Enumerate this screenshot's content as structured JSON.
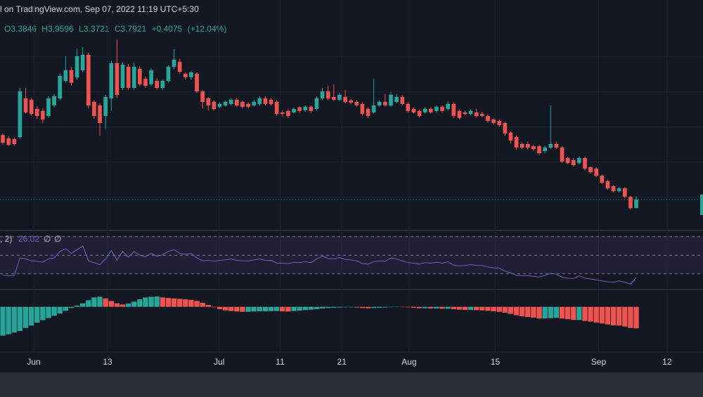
{
  "chart_data": {
    "type": "candlestick",
    "source": "l on TradingView.com, Sep 07, 2022 11:19 UTC+5:30",
    "ohlc_labels": [
      "O",
      "H",
      "L",
      "C"
    ],
    "change": "+0.4075",
    "change_pct": "(+12.04%)",
    "up_color": "#26a69a",
    "down_color": "#ef5350",
    "ylim": [
      2.4,
      12.6
    ],
    "price_grid": [
      3.9,
      5.6,
      7.3,
      9.0,
      10.7
    ],
    "xlim": [
      -0.5,
      122.7
    ],
    "xticks": [
      {
        "value": 5.4,
        "label": "Jun"
      },
      {
        "value": 18.35,
        "label": "13"
      },
      {
        "value": 37.9,
        "label": "Jul"
      },
      {
        "value": 48.6,
        "label": "11"
      },
      {
        "value": 59.4,
        "label": "21"
      },
      {
        "value": 71.2,
        "label": "Aug"
      },
      {
        "value": 86.3,
        "label": "15"
      },
      {
        "value": 104.4,
        "label": "Sep"
      },
      {
        "value": 116.4,
        "label": "12"
      }
    ],
    "candles": [
      [
        6.92,
        7.0,
        6.45,
        6.55
      ],
      [
        6.75,
        6.85,
        6.38,
        6.45
      ],
      [
        6.72,
        6.8,
        6.4,
        6.48
      ],
      [
        6.82,
        9.2,
        6.75,
        9.03
      ],
      [
        8.69,
        9.2,
        7.95,
        8.01
      ],
      [
        8.62,
        8.7,
        7.85,
        7.94
      ],
      [
        8.18,
        8.3,
        7.7,
        7.84
      ],
      [
        8.08,
        8.2,
        7.5,
        7.67
      ],
      [
        7.84,
        8.8,
        7.75,
        8.69
      ],
      [
        8.35,
        8.9,
        8.25,
        8.79
      ],
      [
        8.69,
        9.9,
        8.6,
        9.78
      ],
      [
        9.54,
        10.73,
        9.45,
        10.05
      ],
      [
        10.05,
        10.2,
        9.3,
        9.44
      ],
      [
        9.71,
        11.1,
        9.6,
        10.73
      ],
      [
        10.05,
        11.17,
        9.95,
        10.8
      ],
      [
        10.8,
        10.9,
        8.2,
        8.35
      ],
      [
        8.52,
        8.6,
        7.7,
        7.84
      ],
      [
        8.35,
        8.45,
        6.89,
        7.5
      ],
      [
        7.84,
        8.85,
        7.2,
        8.76
      ],
      [
        8.69,
        10.5,
        8.1,
        10.39
      ],
      [
        10.39,
        11.51,
        8.7,
        8.86
      ],
      [
        9.2,
        10.45,
        9.1,
        10.32
      ],
      [
        10.22,
        10.35,
        9.1,
        9.2
      ],
      [
        9.2,
        10.4,
        9.1,
        10.22
      ],
      [
        10.12,
        10.25,
        9.3,
        9.37
      ],
      [
        9.64,
        9.75,
        9.2,
        9.3
      ],
      [
        9.37,
        10.15,
        9.3,
        10.05
      ],
      [
        9.54,
        9.65,
        9.1,
        9.2
      ],
      [
        9.2,
        9.6,
        9.1,
        9.54
      ],
      [
        9.54,
        10.3,
        9.45,
        10.22
      ],
      [
        10.22,
        11.07,
        10.1,
        10.56
      ],
      [
        10.46,
        10.6,
        9.9,
        9.98
      ],
      [
        9.88,
        9.95,
        9.6,
        9.71
      ],
      [
        9.71,
        10.0,
        9.6,
        9.95
      ],
      [
        9.88,
        9.95,
        8.95,
        9.03
      ],
      [
        9.03,
        9.1,
        8.2,
        8.52
      ],
      [
        8.69,
        8.75,
        8.1,
        8.35
      ],
      [
        8.52,
        8.6,
        8.1,
        8.18
      ],
      [
        8.28,
        8.5,
        8.2,
        8.42
      ],
      [
        8.35,
        8.6,
        8.28,
        8.52
      ],
      [
        8.42,
        8.7,
        8.35,
        8.62
      ],
      [
        8.62,
        8.7,
        8.28,
        8.35
      ],
      [
        8.52,
        8.6,
        8.2,
        8.28
      ],
      [
        8.42,
        8.5,
        8.2,
        8.28
      ],
      [
        8.35,
        8.62,
        8.28,
        8.52
      ],
      [
        8.42,
        8.8,
        8.35,
        8.69
      ],
      [
        8.69,
        8.8,
        8.35,
        8.42
      ],
      [
        8.62,
        8.7,
        8.35,
        8.42
      ],
      [
        8.52,
        8.6,
        7.85,
        7.94
      ],
      [
        8.01,
        8.1,
        7.8,
        7.94
      ],
      [
        8.08,
        8.15,
        7.74,
        7.84
      ],
      [
        8.01,
        8.25,
        7.95,
        8.18
      ],
      [
        8.25,
        8.3,
        8.0,
        8.08
      ],
      [
        8.11,
        8.35,
        8.05,
        8.28
      ],
      [
        8.28,
        8.35,
        8.0,
        8.08
      ],
      [
        8.18,
        8.8,
        8.1,
        8.69
      ],
      [
        8.69,
        9.2,
        8.6,
        9.03
      ],
      [
        9.03,
        9.3,
        8.6,
        8.69
      ],
      [
        8.76,
        9.37,
        8.55,
        8.62
      ],
      [
        8.62,
        8.95,
        8.55,
        8.86
      ],
      [
        8.76,
        9.1,
        8.45,
        8.52
      ],
      [
        8.59,
        8.65,
        8.4,
        8.49
      ],
      [
        8.52,
        8.6,
        8.28,
        8.35
      ],
      [
        8.42,
        8.5,
        7.85,
        7.94
      ],
      [
        8.18,
        8.25,
        7.74,
        7.84
      ],
      [
        8.01,
        9.64,
        7.95,
        8.35
      ],
      [
        8.35,
        8.6,
        8.28,
        8.52
      ],
      [
        8.52,
        8.9,
        8.28,
        8.35
      ],
      [
        8.35,
        9.0,
        8.28,
        8.86
      ],
      [
        8.52,
        8.9,
        8.45,
        8.76
      ],
      [
        8.76,
        8.85,
        8.35,
        8.42
      ],
      [
        8.42,
        8.5,
        8.0,
        8.08
      ],
      [
        8.18,
        8.25,
        7.95,
        8.01
      ],
      [
        8.08,
        8.15,
        7.77,
        7.84
      ],
      [
        8.01,
        8.25,
        7.95,
        8.18
      ],
      [
        8.18,
        8.25,
        7.95,
        8.01
      ],
      [
        8.08,
        8.35,
        8.0,
        8.28
      ],
      [
        8.28,
        8.35,
        8.0,
        8.08
      ],
      [
        8.18,
        8.55,
        8.1,
        8.42
      ],
      [
        8.42,
        8.5,
        7.74,
        7.84
      ],
      [
        8.08,
        8.15,
        7.67,
        7.74
      ],
      [
        8.01,
        8.1,
        7.87,
        7.94
      ],
      [
        7.94,
        8.15,
        7.87,
        8.08
      ],
      [
        8.01,
        8.2,
        7.77,
        7.84
      ],
      [
        7.94,
        8.05,
        7.77,
        7.84
      ],
      [
        7.84,
        7.9,
        7.5,
        7.6
      ],
      [
        7.67,
        7.74,
        7.43,
        7.5
      ],
      [
        7.6,
        7.67,
        7.3,
        7.4
      ],
      [
        7.5,
        7.55,
        6.9,
        6.99
      ],
      [
        7.03,
        7.1,
        6.5,
        6.65
      ],
      [
        6.82,
        6.9,
        6.2,
        6.31
      ],
      [
        6.48,
        6.55,
        6.24,
        6.31
      ],
      [
        6.48,
        6.6,
        6.2,
        6.31
      ],
      [
        6.38,
        6.45,
        6.14,
        6.24
      ],
      [
        6.38,
        6.45,
        5.95,
        6.04
      ],
      [
        6.14,
        6.4,
        6.04,
        6.31
      ],
      [
        6.31,
        8.35,
        6.24,
        6.48
      ],
      [
        6.48,
        6.6,
        6.24,
        6.31
      ],
      [
        6.31,
        6.38,
        5.56,
        5.63
      ],
      [
        5.8,
        5.87,
        5.5,
        5.56
      ],
      [
        5.7,
        5.8,
        5.4,
        5.46
      ],
      [
        5.56,
        5.9,
        5.5,
        5.8
      ],
      [
        5.8,
        5.87,
        5.2,
        5.29
      ],
      [
        5.36,
        5.4,
        5.05,
        5.12
      ],
      [
        5.29,
        5.36,
        4.88,
        4.95
      ],
      [
        4.95,
        5.0,
        4.55,
        4.61
      ],
      [
        4.68,
        4.75,
        4.27,
        4.34
      ],
      [
        4.44,
        4.5,
        4.13,
        4.2
      ],
      [
        4.2,
        4.4,
        4.13,
        4.34
      ],
      [
        4.34,
        4.4,
        3.86,
        3.93
      ],
      [
        3.93,
        3.98,
        3.3,
        3.38
      ],
      [
        3.3846,
        3.9596,
        3.3721,
        3.7921
      ]
    ],
    "rsi": {
      "title": ", 2)",
      "extra": [
        "∅",
        "∅"
      ],
      "color": "#7e57c2",
      "ylim": [
        14,
        75.8
      ],
      "levels": [
        30,
        50,
        70
      ],
      "values": [
        28.5,
        28,
        28.3,
        47,
        46,
        44,
        43.5,
        42.5,
        46,
        47,
        54,
        57,
        52,
        56,
        60,
        44,
        42,
        40,
        46,
        55,
        45,
        54,
        48,
        54,
        50,
        48.5,
        52,
        49,
        50.5,
        54,
        56,
        52,
        51,
        52,
        47,
        44,
        44.5,
        43.5,
        44.5,
        45,
        46,
        44.5,
        44,
        44,
        45,
        46,
        44.5,
        44.5,
        41.5,
        41.5,
        41,
        42.5,
        42,
        43,
        42,
        46,
        49,
        46.5,
        46,
        47.5,
        45.5,
        45,
        44,
        41,
        40.5,
        43,
        44,
        43.5,
        47,
        46,
        44,
        42,
        41.5,
        40.5,
        42,
        41.5,
        42.5,
        41.5,
        43,
        39.5,
        38.5,
        39,
        40,
        39,
        39,
        37.5,
        36.5,
        36,
        33,
        31,
        28.5,
        28,
        28,
        27.5,
        26.5,
        28.5,
        30.5,
        29.5,
        26.5,
        25.5,
        25,
        28,
        25.5,
        24.5,
        23.5,
        22.5,
        21.5,
        21,
        22.5,
        21,
        19,
        26.02
      ]
    },
    "histogram": {
      "ylim": [
        -1.9,
        0.65
      ],
      "values": [
        -1.23,
        -1.17,
        -1.1,
        -1.03,
        -0.9,
        -0.8,
        -0.68,
        -0.57,
        -0.48,
        -0.38,
        -0.29,
        -0.17,
        -0.05,
        0.05,
        0.15,
        0.28,
        0.4,
        0.43,
        0.36,
        0.25,
        0.15,
        0.1,
        0.14,
        0.22,
        0.32,
        0.4,
        0.43,
        0.44,
        0.4,
        0.38,
        0.36,
        0.34,
        0.32,
        0.3,
        0.25,
        0.17,
        0.08,
        -0.02,
        -0.1,
        -0.15,
        -0.18,
        -0.2,
        -0.21,
        -0.21,
        -0.2,
        -0.19,
        -0.19,
        -0.18,
        -0.18,
        -0.19,
        -0.2,
        -0.18,
        -0.16,
        -0.14,
        -0.12,
        -0.1,
        -0.07,
        -0.05,
        -0.04,
        -0.03,
        -0.02,
        -0.02,
        -0.03,
        -0.05,
        -0.06,
        -0.05,
        -0.04,
        -0.03,
        -0.01,
        0.01,
        0.0,
        -0.02,
        -0.04,
        -0.06,
        -0.06,
        -0.07,
        -0.07,
        -0.08,
        -0.08,
        -0.1,
        -0.12,
        -0.13,
        -0.13,
        -0.14,
        -0.15,
        -0.17,
        -0.19,
        -0.21,
        -0.25,
        -0.3,
        -0.36,
        -0.4,
        -0.43,
        -0.46,
        -0.5,
        -0.5,
        -0.48,
        -0.47,
        -0.5,
        -0.53,
        -0.56,
        -0.56,
        -0.6,
        -0.63,
        -0.67,
        -0.71,
        -0.75,
        -0.79,
        -0.8,
        -0.84,
        -0.9,
        -0.92
      ]
    }
  }
}
